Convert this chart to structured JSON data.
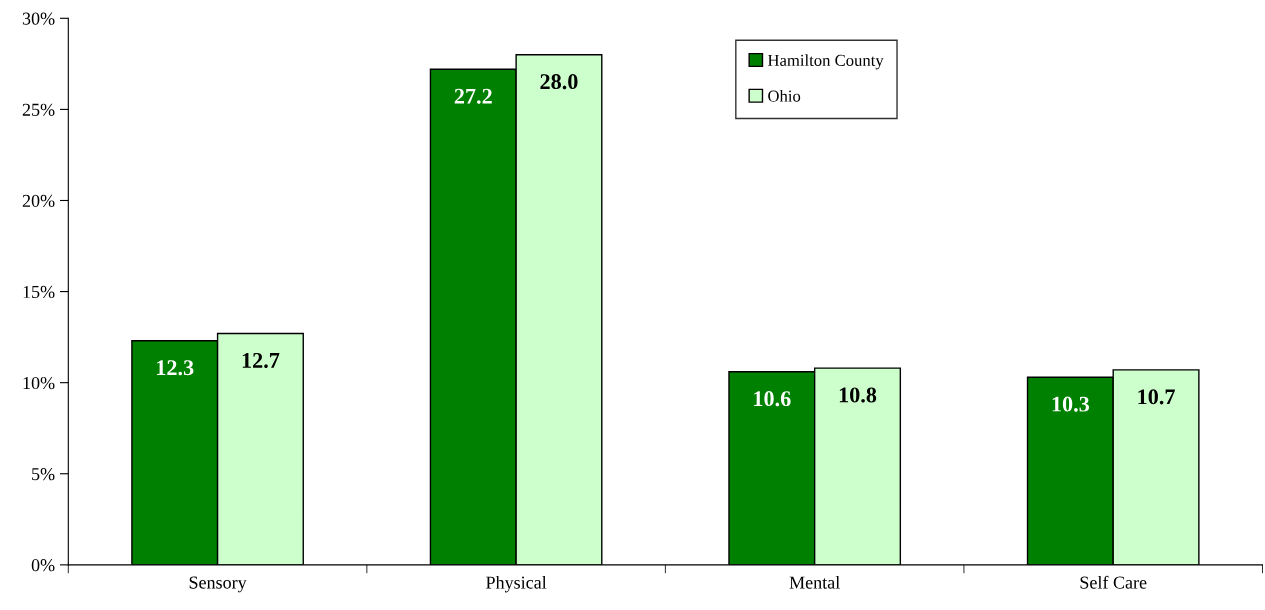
{
  "chart_data": {
    "type": "bar",
    "categories": [
      "Sensory",
      "Physical",
      "Mental",
      "Self Care"
    ],
    "series": [
      {
        "name": "Hamilton County",
        "color": "#008000",
        "values": [
          12.3,
          27.2,
          10.6,
          10.3
        ],
        "value_labels": [
          "12.3",
          "27.2",
          "10.6",
          "10.3"
        ]
      },
      {
        "name": "Ohio",
        "color": "#ccffcc",
        "values": [
          12.7,
          28.0,
          10.8,
          10.7
        ],
        "value_labels": [
          "12.7",
          "28.0",
          "10.8",
          "10.7"
        ]
      }
    ],
    "ylim": [
      0,
      30
    ],
    "yticks": [
      {
        "value": 0,
        "label": "0%"
      },
      {
        "value": 5,
        "label": "5%"
      },
      {
        "value": 10,
        "label": "10%"
      },
      {
        "value": 15,
        "label": "15%"
      },
      {
        "value": 20,
        "label": "20%"
      },
      {
        "value": 25,
        "label": "25%"
      },
      {
        "value": 30,
        "label": "30%"
      }
    ],
    "grid": false,
    "legend": "top right"
  }
}
